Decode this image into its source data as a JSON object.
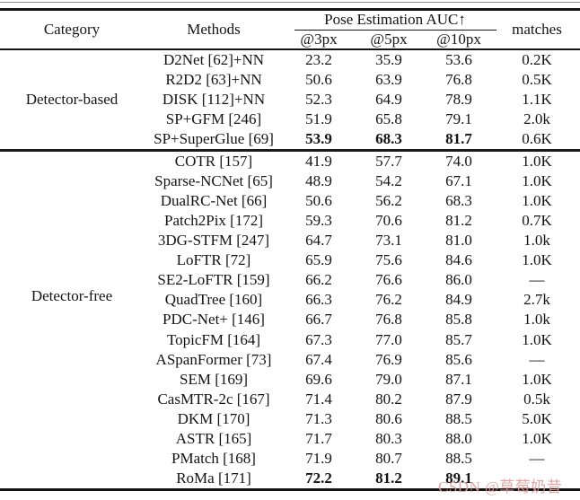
{
  "table": {
    "header": {
      "category": "Category",
      "methods": "Methods",
      "auc_group": "Pose Estimation AUC↑",
      "sub": [
        "@3px",
        "@5px",
        "@10px"
      ],
      "matches": "matches"
    },
    "sections": [
      {
        "category": "Detector-based",
        "rows": [
          {
            "method": "D2Net [62]+NN",
            "auc3": "23.2",
            "auc5": "35.9",
            "auc10": "53.6",
            "matches": "0.2K",
            "bold": false
          },
          {
            "method": "R2D2 [63]+NN",
            "auc3": "50.6",
            "auc5": "63.9",
            "auc10": "76.8",
            "matches": "0.5K",
            "bold": false
          },
          {
            "method": "DISK [112]+NN",
            "auc3": "52.3",
            "auc5": "64.9",
            "auc10": "78.9",
            "matches": "1.1K",
            "bold": false
          },
          {
            "method": "SP+GFM [246]",
            "auc3": "51.9",
            "auc5": "65.8",
            "auc10": "79.1",
            "matches": "2.0k",
            "bold": false
          },
          {
            "method": "SP+SuperGlue [69]",
            "auc3": "53.9",
            "auc5": "68.3",
            "auc10": "81.7",
            "matches": "0.6K",
            "bold": true
          }
        ]
      },
      {
        "category": "Detector-free",
        "rows": [
          {
            "method": "COTR [157]",
            "auc3": "41.9",
            "auc5": "57.7",
            "auc10": "74.0",
            "matches": "1.0K",
            "bold": false
          },
          {
            "method": "Sparse-NCNet [65]",
            "auc3": "48.9",
            "auc5": "54.2",
            "auc10": "67.1",
            "matches": "1.0K",
            "bold": false
          },
          {
            "method": "DualRC-Net [66]",
            "auc3": "50.6",
            "auc5": "56.2",
            "auc10": "68.3",
            "matches": "1.0K",
            "bold": false
          },
          {
            "method": "Patch2Pix [172]",
            "auc3": "59.3",
            "auc5": "70.6",
            "auc10": "81.2",
            "matches": "0.7K",
            "bold": false
          },
          {
            "method": "3DG-STFM [247]",
            "auc3": "64.7",
            "auc5": "73.1",
            "auc10": "81.0",
            "matches": "1.0k",
            "bold": false
          },
          {
            "method": "LoFTR [72]",
            "auc3": "65.9",
            "auc5": "75.6",
            "auc10": "84.6",
            "matches": "1.0K",
            "bold": false
          },
          {
            "method": "SE2-LoFTR [159]",
            "auc3": "66.2",
            "auc5": "76.6",
            "auc10": "86.0",
            "matches": "—",
            "bold": false
          },
          {
            "method": "QuadTree [160]",
            "auc3": "66.3",
            "auc5": "76.2",
            "auc10": "84.9",
            "matches": "2.7k",
            "bold": false
          },
          {
            "method": "PDC-Net+ [146]",
            "auc3": "66.7",
            "auc5": "76.8",
            "auc10": "85.8",
            "matches": "1.0k",
            "bold": false
          },
          {
            "method": "TopicFM [164]",
            "auc3": "67.3",
            "auc5": "77.0",
            "auc10": "85.7",
            "matches": "1.0K",
            "bold": false
          },
          {
            "method": "ASpanFormer [73]",
            "auc3": "67.4",
            "auc5": "76.9",
            "auc10": "85.6",
            "matches": "—",
            "bold": false
          },
          {
            "method": "SEM [169]",
            "auc3": "69.6",
            "auc5": "79.0",
            "auc10": "87.1",
            "matches": "1.0K",
            "bold": false
          },
          {
            "method": "CasMTR-2c [167]",
            "auc3": "71.4",
            "auc5": "80.2",
            "auc10": "87.9",
            "matches": "0.5k",
            "bold": false
          },
          {
            "method": "DKM [170]",
            "auc3": "71.3",
            "auc5": "80.6",
            "auc10": "88.5",
            "matches": "5.0K",
            "bold": false
          },
          {
            "method": "ASTR [165]",
            "auc3": "71.7",
            "auc5": "80.3",
            "auc10": "88.0",
            "matches": "1.0K",
            "bold": false
          },
          {
            "method": "PMatch [168]",
            "auc3": "71.9",
            "auc5": "80.7",
            "auc10": "88.5",
            "matches": "—",
            "bold": false
          },
          {
            "method": "RoMa [171]",
            "auc3": "72.2",
            "auc5": "81.2",
            "auc10": "89.1",
            "matches": "",
            "bold": true
          }
        ]
      }
    ]
  },
  "watermark": {
    "text": "CSDN @草莓奶昔",
    "color": "#e59c9c"
  }
}
